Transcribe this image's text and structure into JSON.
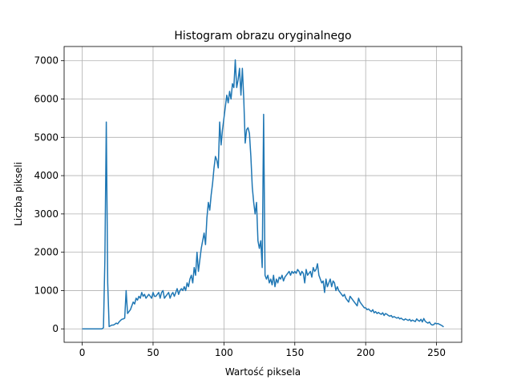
{
  "chart_data": {
    "type": "line",
    "title": "Histogram obrazu oryginalnego",
    "xlabel": "Wartość piksela",
    "ylabel": "Liczba pikseli",
    "x": [
      0,
      1,
      2,
      3,
      4,
      5,
      6,
      7,
      8,
      9,
      10,
      11,
      12,
      13,
      14,
      15,
      16,
      17,
      18,
      19,
      20,
      21,
      22,
      23,
      24,
      25,
      26,
      27,
      28,
      29,
      30,
      31,
      32,
      33,
      34,
      35,
      36,
      37,
      38,
      39,
      40,
      41,
      42,
      43,
      44,
      45,
      46,
      47,
      48,
      49,
      50,
      51,
      52,
      53,
      54,
      55,
      56,
      57,
      58,
      59,
      60,
      61,
      62,
      63,
      64,
      65,
      66,
      67,
      68,
      69,
      70,
      71,
      72,
      73,
      74,
      75,
      76,
      77,
      78,
      79,
      80,
      81,
      82,
      83,
      84,
      85,
      86,
      87,
      88,
      89,
      90,
      91,
      92,
      93,
      94,
      95,
      96,
      97,
      98,
      99,
      100,
      101,
      102,
      103,
      104,
      105,
      106,
      107,
      108,
      109,
      110,
      111,
      112,
      113,
      114,
      115,
      116,
      117,
      118,
      119,
      120,
      121,
      122,
      123,
      124,
      125,
      126,
      127,
      128,
      129,
      130,
      131,
      132,
      133,
      134,
      135,
      136,
      137,
      138,
      139,
      140,
      141,
      142,
      143,
      144,
      145,
      146,
      147,
      148,
      149,
      150,
      151,
      152,
      153,
      154,
      155,
      156,
      157,
      158,
      159,
      160,
      161,
      162,
      163,
      164,
      165,
      166,
      167,
      168,
      169,
      170,
      171,
      172,
      173,
      174,
      175,
      176,
      177,
      178,
      179,
      180,
      181,
      182,
      183,
      184,
      185,
      186,
      187,
      188,
      189,
      190,
      191,
      192,
      193,
      194,
      195,
      196,
      197,
      198,
      199,
      200,
      201,
      202,
      203,
      204,
      205,
      206,
      207,
      208,
      209,
      210,
      211,
      212,
      213,
      214,
      215,
      216,
      217,
      218,
      219,
      220,
      221,
      222,
      223,
      224,
      225,
      226,
      227,
      228,
      229,
      230,
      231,
      232,
      233,
      234,
      235,
      236,
      237,
      238,
      239,
      240,
      241,
      242,
      243,
      244,
      245,
      246,
      247,
      248,
      249,
      250,
      251,
      252,
      253,
      254,
      255
    ],
    "series": [
      {
        "color": "#1f77b4",
        "values": [
          0,
          0,
          0,
          0,
          0,
          0,
          0,
          0,
          0,
          0,
          0,
          0,
          0,
          0,
          0,
          30,
          1800,
          5400,
          1200,
          60,
          80,
          100,
          100,
          120,
          150,
          130,
          180,
          220,
          250,
          260,
          280,
          1000,
          400,
          450,
          500,
          600,
          700,
          650,
          800,
          750,
          850,
          800,
          950,
          850,
          900,
          800,
          850,
          900,
          850,
          800,
          950,
          850,
          850,
          900,
          950,
          800,
          950,
          1000,
          800,
          850,
          900,
          950,
          800,
          900,
          950,
          850,
          950,
          1050,
          900,
          1000,
          1050,
          1000,
          1100,
          1000,
          1200,
          1100,
          1300,
          1400,
          1200,
          1600,
          1400,
          2000,
          1500,
          1800,
          2100,
          2300,
          2500,
          2200,
          2900,
          3300,
          3100,
          3500,
          3800,
          4200,
          4500,
          4400,
          4200,
          5400,
          4800,
          5200,
          5500,
          5800,
          6100,
          5900,
          6200,
          6000,
          6400,
          6300,
          7020,
          6300,
          6500,
          6800,
          6100,
          6800,
          6000,
          4850,
          5200,
          5250,
          5100,
          4500,
          3700,
          3300,
          3000,
          3300,
          2300,
          2100,
          2300,
          1600,
          5600,
          1400,
          1300,
          1400,
          1200,
          1300,
          1150,
          1400,
          1100,
          1300,
          1200,
          1350,
          1300,
          1400,
          1250,
          1350,
          1400,
          1450,
          1500,
          1400,
          1500,
          1450,
          1500,
          1450,
          1550,
          1500,
          1400,
          1500,
          1450,
          1200,
          1550,
          1400,
          1450,
          1500,
          1350,
          1600,
          1500,
          1550,
          1700,
          1400,
          1300,
          1200,
          1250,
          950,
          1300,
          1100,
          1200,
          1300,
          1100,
          1250,
          1200,
          1000,
          1100,
          1000,
          950,
          900,
          850,
          900,
          800,
          750,
          700,
          850,
          800,
          750,
          700,
          650,
          600,
          800,
          700,
          650,
          600,
          550,
          550,
          500,
          520,
          480,
          450,
          500,
          420,
          450,
          400,
          430,
          400,
          380,
          420,
          350,
          400,
          380,
          350,
          330,
          350,
          300,
          320,
          300,
          280,
          300,
          260,
          280,
          250,
          230,
          260,
          240,
          220,
          250,
          200,
          230,
          210,
          190,
          260,
          220,
          200,
          250,
          180,
          270,
          200,
          170,
          150,
          180,
          120,
          100,
          110,
          150,
          130,
          140,
          120,
          100,
          80,
          50
        ]
      }
    ],
    "xlim": [
      -12.75,
      267.75
    ],
    "xticks": [
      0,
      50,
      100,
      150,
      200,
      250
    ],
    "ylim": [
      -351,
      7371
    ],
    "yticks": [
      0,
      1000,
      2000,
      3000,
      4000,
      5000,
      6000,
      7000
    ],
    "grid": true
  }
}
